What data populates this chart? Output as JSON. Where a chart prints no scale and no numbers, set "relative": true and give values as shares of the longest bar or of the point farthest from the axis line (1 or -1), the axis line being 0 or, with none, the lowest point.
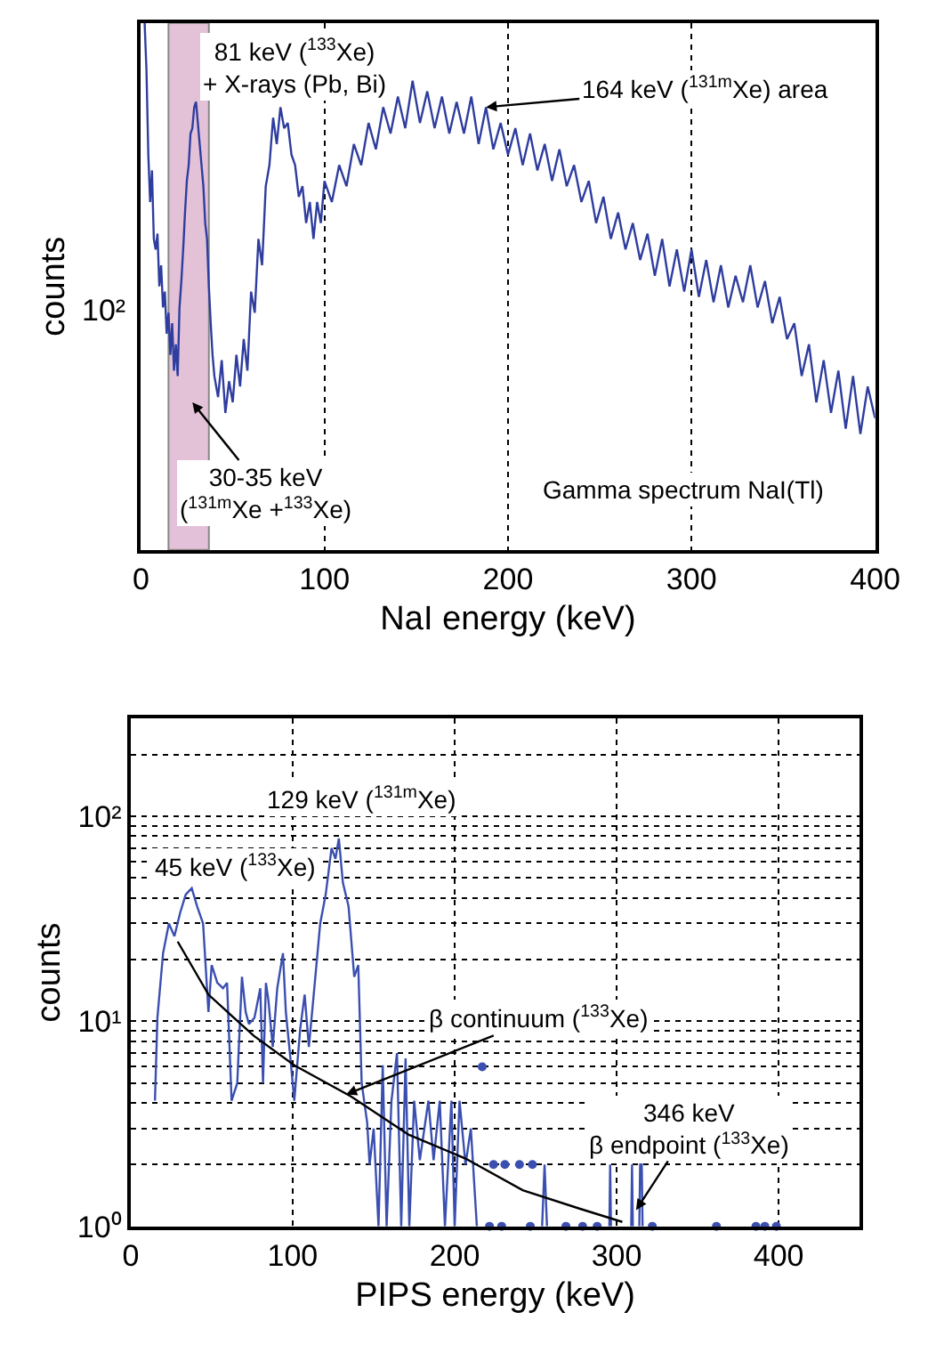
{
  "chart_data": [
    {
      "type": "line",
      "xlabel": "NaI energy (keV)",
      "ylabel": "counts",
      "relative": true,
      "grid": "x",
      "xlim": [
        0,
        400
      ],
      "xticks": [
        0,
        100,
        200,
        300,
        400
      ],
      "bands": [
        {
          "axis": "x",
          "from": 15,
          "to": 37,
          "color": "#d8a8c8"
        }
      ],
      "annotations": [
        {
          "text": "81 keV ($^{133}$Xe)\n+ X-rays (Pb, Bi)",
          "x": 30,
          "y": 0.85
        },
        {
          "text": "164 keV ($^{131m}$Xe) area",
          "x": 188,
          "y": 0.84
        },
        "30-35 keV\n($^{131m}$Xe +$^{133}$Xe)",
        "Gamma spectrum NaI(Tl)",
        "10²"
      ],
      "series": [
        {
          "color": "#2e3d9e",
          "x": [
            2,
            3,
            4,
            5,
            6,
            7,
            8,
            9,
            10,
            11,
            12,
            13,
            14,
            15,
            16,
            17,
            18,
            19,
            20,
            21,
            22,
            23,
            24,
            25,
            26,
            27,
            28,
            29,
            30,
            31,
            32,
            33,
            34,
            35,
            36,
            37,
            38,
            39,
            40,
            42,
            44,
            46,
            48,
            50,
            52,
            54,
            56,
            58,
            60,
            62,
            64,
            66,
            68,
            70,
            72,
            74,
            76,
            78,
            80,
            82,
            84,
            86,
            88,
            90,
            92,
            94,
            96,
            98,
            100,
            104,
            108,
            112,
            116,
            120,
            124,
            128,
            132,
            136,
            140,
            144,
            148,
            152,
            156,
            160,
            164,
            168,
            172,
            176,
            180,
            184,
            188,
            192,
            196,
            200,
            204,
            208,
            212,
            216,
            220,
            224,
            228,
            232,
            236,
            240,
            244,
            248,
            252,
            256,
            260,
            264,
            268,
            272,
            276,
            280,
            284,
            288,
            292,
            296,
            300,
            304,
            308,
            312,
            316,
            320,
            324,
            328,
            332,
            336,
            340,
            344,
            348,
            352,
            356,
            360,
            364,
            368,
            372,
            376,
            380,
            384,
            388,
            392,
            396,
            400
          ],
          "values": [
            1.0,
            0.91,
            0.75,
            0.66,
            0.72,
            0.59,
            0.57,
            0.6,
            0.5,
            0.54,
            0.46,
            0.49,
            0.41,
            0.45,
            0.37,
            0.43,
            0.34,
            0.39,
            0.33,
            0.46,
            0.51,
            0.57,
            0.64,
            0.7,
            0.73,
            0.79,
            0.8,
            0.84,
            0.85,
            0.81,
            0.77,
            0.73,
            0.69,
            0.62,
            0.59,
            0.5,
            0.43,
            0.37,
            0.33,
            0.29,
            0.36,
            0.26,
            0.32,
            0.28,
            0.37,
            0.31,
            0.4,
            0.34,
            0.49,
            0.45,
            0.59,
            0.54,
            0.69,
            0.73,
            0.82,
            0.77,
            0.84,
            0.8,
            0.81,
            0.75,
            0.73,
            0.67,
            0.69,
            0.62,
            0.66,
            0.59,
            0.66,
            0.62,
            0.7,
            0.66,
            0.73,
            0.69,
            0.77,
            0.73,
            0.81,
            0.76,
            0.84,
            0.79,
            0.86,
            0.8,
            0.89,
            0.81,
            0.87,
            0.8,
            0.86,
            0.79,
            0.85,
            0.79,
            0.86,
            0.77,
            0.84,
            0.76,
            0.81,
            0.75,
            0.8,
            0.73,
            0.79,
            0.72,
            0.77,
            0.7,
            0.76,
            0.69,
            0.73,
            0.66,
            0.7,
            0.62,
            0.67,
            0.59,
            0.64,
            0.57,
            0.62,
            0.55,
            0.6,
            0.52,
            0.59,
            0.5,
            0.57,
            0.49,
            0.57,
            0.48,
            0.55,
            0.47,
            0.54,
            0.46,
            0.52,
            0.47,
            0.54,
            0.46,
            0.51,
            0.43,
            0.48,
            0.4,
            0.43,
            0.33,
            0.39,
            0.28,
            0.36,
            0.26,
            0.34,
            0.23,
            0.33,
            0.22,
            0.31,
            0.25
          ]
        }
      ]
    },
    {
      "type": "line",
      "xlabel": "PIPS energy (keV)",
      "ylabel": "counts",
      "log": "y",
      "grid": true,
      "xlim": [
        0,
        450
      ],
      "xticks": [
        0,
        100,
        200,
        300,
        400
      ],
      "ylim": [
        1,
        300
      ],
      "yticks": [
        {
          "value": 1,
          "label": "10⁰"
        },
        {
          "value": 2,
          "label": null
        },
        {
          "value": 3,
          "label": null
        },
        {
          "value": 4,
          "label": null
        },
        {
          "value": 5,
          "label": null
        },
        {
          "value": 6,
          "label": null
        },
        {
          "value": 7,
          "label": null
        },
        {
          "value": 8,
          "label": null
        },
        {
          "value": 9,
          "label": null
        },
        {
          "value": 10,
          "label": "10¹"
        },
        {
          "value": 20,
          "label": null
        },
        {
          "value": 30,
          "label": null
        },
        {
          "value": 40,
          "label": null
        },
        {
          "value": 50,
          "label": null
        },
        {
          "value": 60,
          "label": null
        },
        {
          "value": 70,
          "label": null
        },
        {
          "value": 80,
          "label": null
        },
        {
          "value": 90,
          "label": null
        },
        {
          "value": 100,
          "label": "10²"
        },
        {
          "value": 200,
          "label": null
        }
      ],
      "annotations": [
        {
          "text": "45 keV ($^{133}$Xe)",
          "x": 38,
          "y": 44.6
        },
        {
          "text": "129 keV ($^{131m}$Xe)",
          "x": 128.5,
          "y": 78
        },
        {
          "text": "β continuum ($^{133}$Xe)",
          "x": 133,
          "y": 4.4
        },
        {
          "text": "346 keV\nβ endpoint ($^{133}$Xe)",
          "x": 312,
          "y": 1.2
        }
      ],
      "series": [
        {
          "color": "#3a4fb0",
          "x": [
            15,
            16.5,
            20,
            23.6,
            27,
            30.6,
            34,
            37.7,
            41,
            44.7,
            48,
            50,
            53.5,
            57,
            59.5,
            62.3,
            65.8,
            68.7,
            71,
            73,
            76.4,
            80,
            81.7,
            83.5,
            85,
            87.7,
            90.5,
            94,
            95.8,
            98.6,
            101,
            104.6,
            107.4,
            110,
            113,
            117,
            120.4,
            124,
            126.4,
            128.5,
            131,
            134.5,
            138,
            140.5,
            142.6,
            146,
            147.5,
            150,
            153,
            155.6,
            158,
            161,
            164.4,
            167,
            169.7,
            172,
            175,
            178.5,
            183.8,
            187,
            190.8,
            194,
            198,
            200,
            203,
            206.7,
            210,
            213.7,
            220,
            254,
            255.5,
            257,
            270,
            295.5,
            296,
            296.5,
            300,
            309,
            309.5,
            310,
            312,
            314,
            314.5,
            315.5,
            316
          ],
          "values": [
            4.1,
            10.4,
            21.5,
            30,
            26,
            34,
            41.6,
            44.6,
            36.4,
            30,
            11.1,
            18.8,
            15.4,
            14.5,
            15.4,
            4.1,
            5,
            16.5,
            11.1,
            9.7,
            10.4,
            14.5,
            5,
            15.4,
            12.7,
            7.5,
            14.5,
            21.5,
            11.1,
            6.6,
            4.1,
            9.1,
            13.5,
            7.5,
            13.5,
            30,
            41.6,
            70,
            62,
            78,
            47.5,
            36.4,
            16.5,
            18.8,
            5,
            3.2,
            2,
            3,
            1,
            6.1,
            1,
            4.1,
            7,
            1,
            6.6,
            1,
            4.1,
            2.1,
            4.1,
            2.1,
            4.1,
            1,
            4.1,
            1,
            4.1,
            2,
            3,
            1,
            null,
            1,
            2,
            1,
            null,
            1,
            2,
            1,
            null,
            1,
            2,
            1,
            null,
            1,
            2,
            2,
            1
          ]
        },
        {
          "type": "scatter",
          "marker": "circle",
          "color": "#3a4fb0",
          "x": [
            217,
            221.5,
            224,
            229,
            231,
            240,
            246.7,
            248,
            268.7,
            279,
            288,
            322,
            361.6,
            386,
            391.5,
            398.6
          ],
          "values": [
            6,
            1,
            2,
            1,
            2,
            2,
            1,
            2,
            1,
            1,
            1,
            1,
            1,
            1,
            1,
            1
          ]
        },
        {
          "color": "#000000",
          "x": [
            29,
            48,
            76,
            101,
            136,
            171.5,
            206.7,
            242,
            277,
            303.5
          ],
          "values": [
            24.5,
            13.5,
            8.5,
            6.1,
            4.3,
            2.8,
            2.14,
            1.5,
            1.22,
            1.05
          ]
        }
      ]
    }
  ]
}
